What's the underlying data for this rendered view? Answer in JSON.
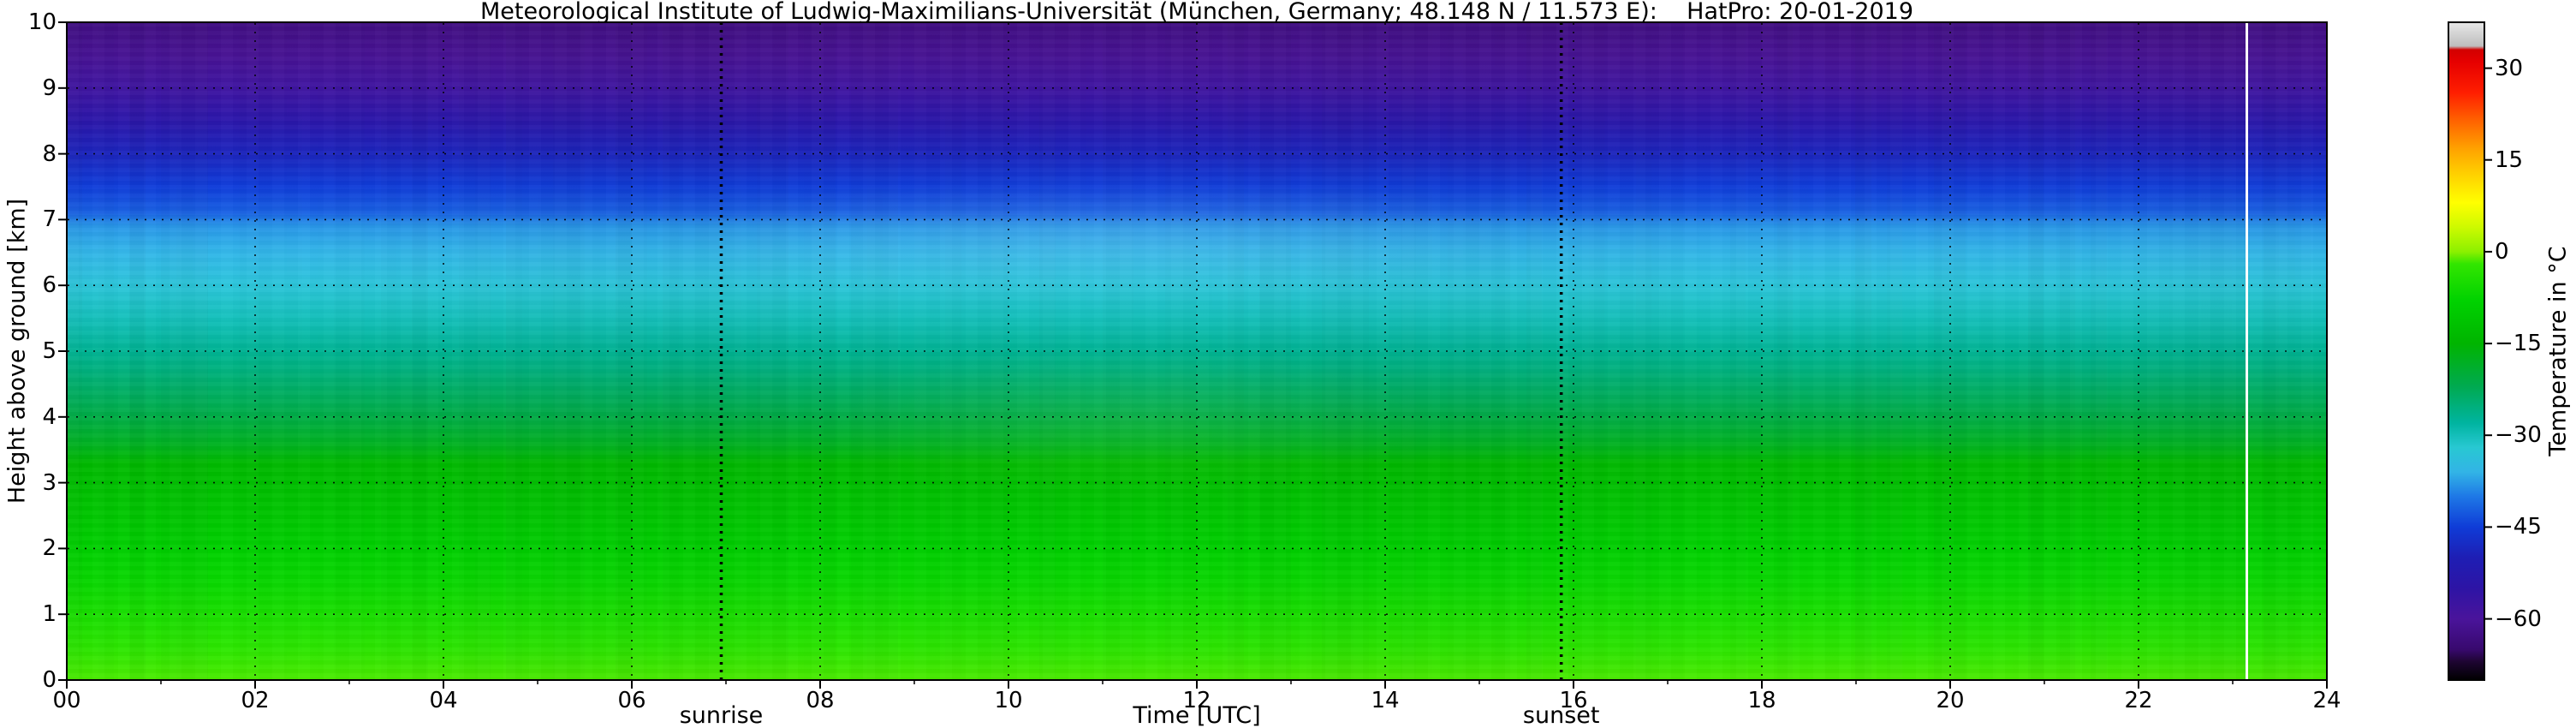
{
  "chart_data": {
    "type": "heatmap",
    "title": "Meteorological Institute of Ludwig-Maximilians-Universität (München, Germany; 48.148 N / 11.573 E):    HatPro: 20-01-2019",
    "xlabel": "Time [UTC]",
    "ylabel": "Height above ground [km]",
    "grid": true,
    "x_range_hours": [
      0,
      24
    ],
    "y_range_km": [
      0,
      10
    ],
    "x_tick_values": [
      0,
      2,
      4,
      6,
      8,
      10,
      12,
      14,
      16,
      18,
      20,
      22,
      24
    ],
    "x_tick_labels": [
      "00",
      "02",
      "04",
      "06",
      "08",
      "10",
      "12",
      "14",
      "16",
      "18",
      "20",
      "22",
      "24"
    ],
    "y_tick_values": [
      0,
      1,
      2,
      3,
      4,
      5,
      6,
      7,
      8,
      9,
      10
    ],
    "y_tick_labels": [
      "0",
      "1",
      "2",
      "3",
      "4",
      "5",
      "6",
      "7",
      "8",
      "9",
      "10"
    ],
    "annotations": [
      {
        "label": "sunrise",
        "hour_utc": 6.95
      },
      {
        "label": "sunset",
        "hour_utc": 15.87
      }
    ],
    "missing_data_line_hour_utc": 23.15,
    "missing_data_line_color": "#ffffff",
    "colorbar": {
      "label": "Temperature in  °C",
      "range_c": [
        -70,
        37.5
      ],
      "tick_values": [
        30,
        15,
        0,
        -15,
        -30,
        -45,
        -60
      ],
      "tick_labels": [
        "30",
        "15",
        "0",
        "−15",
        "−30",
        "−45",
        "−60"
      ],
      "colormap_stops": [
        [
          -70,
          "#000000"
        ],
        [
          -67,
          "#1e0532"
        ],
        [
          -65,
          "#38096e"
        ],
        [
          -60,
          "#4a149b"
        ],
        [
          -55,
          "#2d14a5"
        ],
        [
          -50,
          "#1e1eb4"
        ],
        [
          -45,
          "#0f3cd7"
        ],
        [
          -40,
          "#1e78e6"
        ],
        [
          -36,
          "#32b4e6"
        ],
        [
          -32,
          "#28c8d2"
        ],
        [
          -28,
          "#00b4a0"
        ],
        [
          -22,
          "#00aa50"
        ],
        [
          -15,
          "#00b400"
        ],
        [
          -8,
          "#00d200"
        ],
        [
          -2,
          "#32e600"
        ],
        [
          0,
          "#8cf000"
        ],
        [
          4,
          "#cdfa00"
        ],
        [
          8,
          "#ffff00"
        ],
        [
          13,
          "#ffcd00"
        ],
        [
          17,
          "#ffa000"
        ],
        [
          22,
          "#ff5a00"
        ],
        [
          26,
          "#ff1e00"
        ],
        [
          31,
          "#e60000"
        ],
        [
          33,
          "#d20000"
        ],
        [
          33.6,
          "#bebebe"
        ],
        [
          37.5,
          "#e8e8e8"
        ]
      ]
    },
    "profile": {
      "heights_km": [
        0,
        0.5,
        1,
        1.5,
        2,
        2.5,
        3,
        3.3,
        3.6,
        4,
        4.5,
        5,
        5.5,
        6,
        6.5,
        6.9,
        7.1,
        7.5,
        8,
        8.5,
        9,
        9.5,
        10
      ],
      "temps_c": [
        -1.5,
        -3,
        -5,
        -7,
        -9,
        -11,
        -13,
        -14,
        -18,
        -21,
        -24,
        -27,
        -30,
        -33,
        -36,
        -38,
        -42,
        -45,
        -49,
        -54,
        -58,
        -61,
        -63
      ]
    },
    "n_time_columns": 144,
    "column_brightness_seed": 7
  }
}
